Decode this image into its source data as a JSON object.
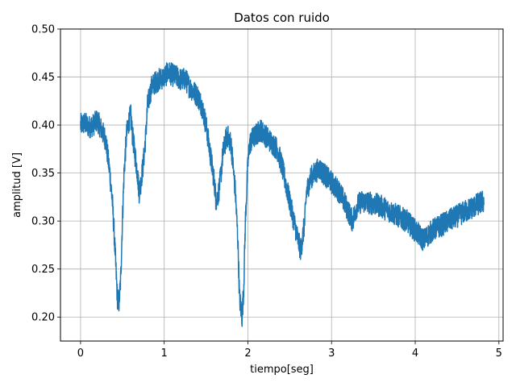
{
  "chart_data": {
    "type": "line",
    "title": "Datos con ruido",
    "xlabel": "tiempo[seg]",
    "ylabel": "amplitud [V]",
    "xlim": [
      -0.24,
      5.05
    ],
    "ylim": [
      0.175,
      0.5
    ],
    "x_ticks": [
      0,
      1,
      2,
      3,
      4,
      5
    ],
    "y_ticks": [
      0.2,
      0.25,
      0.3,
      0.35,
      0.4,
      0.45,
      0.5
    ],
    "x_tick_labels": [
      "0",
      "1",
      "2",
      "3",
      "4",
      "5"
    ],
    "y_tick_labels": [
      "0.20",
      "0.25",
      "0.30",
      "0.35",
      "0.40",
      "0.45",
      "0.50"
    ],
    "grid": true,
    "color": "#1f77b4",
    "noise_amplitude": 0.012,
    "series": [
      {
        "x": [
          0.0,
          0.05,
          0.1,
          0.15,
          0.2,
          0.25,
          0.3,
          0.35,
          0.38,
          0.4,
          0.42,
          0.44,
          0.46,
          0.48,
          0.5,
          0.52,
          0.55,
          0.58,
          0.6,
          0.62,
          0.65,
          0.68,
          0.7,
          0.72,
          0.75,
          0.78,
          0.8,
          0.85,
          0.9,
          0.95,
          1.0,
          1.05,
          1.1,
          1.15,
          1.2,
          1.25,
          1.3,
          1.35,
          1.4,
          1.45,
          1.5,
          1.55,
          1.6,
          1.62,
          1.65,
          1.68,
          1.7,
          1.75,
          1.8,
          1.85,
          1.88,
          1.9,
          1.93,
          1.95,
          1.97,
          2.0,
          2.02,
          2.05,
          2.1,
          2.15,
          2.2,
          2.25,
          2.3,
          2.35,
          2.4,
          2.45,
          2.5,
          2.55,
          2.6,
          2.63,
          2.65,
          2.68,
          2.7,
          2.75,
          2.8,
          2.85,
          2.9,
          2.95,
          3.0,
          3.05,
          3.1,
          3.15,
          3.2,
          3.25,
          3.3,
          3.35,
          3.4,
          3.5,
          3.6,
          3.7,
          3.8,
          3.9,
          4.0,
          4.05,
          4.1,
          4.15,
          4.2,
          4.3,
          4.4,
          4.5,
          4.6,
          4.7,
          4.8,
          4.82
        ],
        "values": [
          0.4,
          0.402,
          0.398,
          0.4,
          0.405,
          0.395,
          0.385,
          0.35,
          0.32,
          0.29,
          0.255,
          0.22,
          0.215,
          0.24,
          0.3,
          0.35,
          0.39,
          0.405,
          0.41,
          0.39,
          0.37,
          0.35,
          0.33,
          0.34,
          0.36,
          0.39,
          0.42,
          0.44,
          0.445,
          0.448,
          0.45,
          0.455,
          0.452,
          0.45,
          0.447,
          0.448,
          0.44,
          0.435,
          0.43,
          0.42,
          0.4,
          0.37,
          0.34,
          0.32,
          0.33,
          0.35,
          0.37,
          0.39,
          0.38,
          0.33,
          0.28,
          0.22,
          0.2,
          0.23,
          0.3,
          0.36,
          0.38,
          0.385,
          0.39,
          0.395,
          0.39,
          0.385,
          0.38,
          0.375,
          0.36,
          0.34,
          0.32,
          0.3,
          0.28,
          0.27,
          0.28,
          0.3,
          0.33,
          0.345,
          0.35,
          0.355,
          0.35,
          0.345,
          0.34,
          0.335,
          0.33,
          0.32,
          0.31,
          0.3,
          0.315,
          0.32,
          0.32,
          0.318,
          0.315,
          0.31,
          0.305,
          0.3,
          0.29,
          0.285,
          0.28,
          0.285,
          0.29,
          0.295,
          0.3,
          0.305,
          0.31,
          0.315,
          0.32,
          0.32
        ]
      }
    ]
  }
}
